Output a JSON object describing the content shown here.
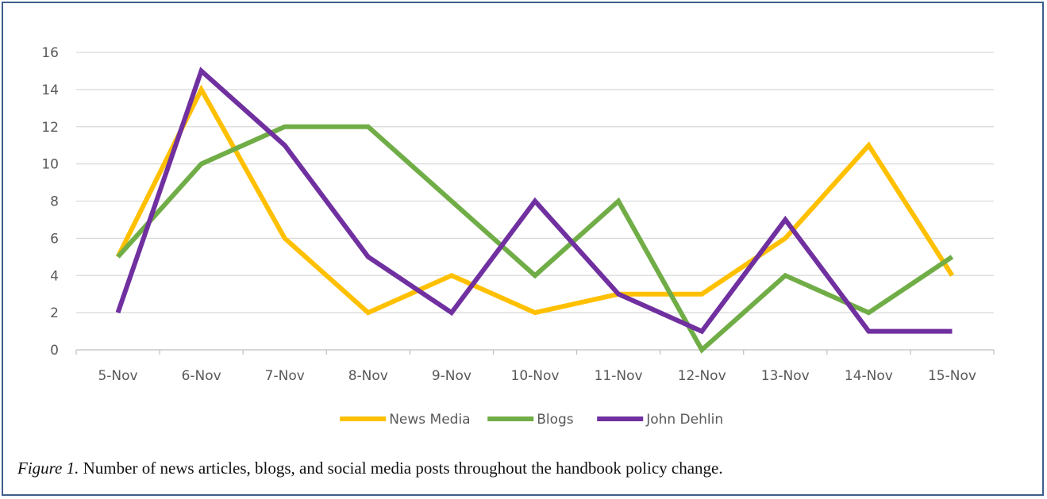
{
  "chart_data": {
    "type": "line",
    "categories": [
      "5-Nov",
      "6-Nov",
      "7-Nov",
      "8-Nov",
      "9-Nov",
      "10-Nov",
      "11-Nov",
      "12-Nov",
      "13-Nov",
      "14-Nov",
      "15-Nov"
    ],
    "series": [
      {
        "name": "News Media",
        "color": "#ffc000",
        "values": [
          5,
          14,
          6,
          2,
          4,
          2,
          3,
          3,
          6,
          11,
          4
        ]
      },
      {
        "name": "Blogs",
        "color": "#70ad47",
        "values": [
          5,
          10,
          12,
          12,
          8,
          4,
          8,
          0,
          4,
          2,
          5
        ]
      },
      {
        "name": "John Dehlin",
        "color": "#7030a0",
        "values": [
          2,
          15,
          11,
          5,
          2,
          8,
          3,
          1,
          7,
          1,
          1
        ]
      }
    ],
    "ylim": [
      0,
      16
    ],
    "yticks": [
      0,
      2,
      4,
      6,
      8,
      10,
      12,
      14,
      16
    ],
    "grid": true,
    "legend_position": "bottom",
    "title": "",
    "xlabel": "",
    "ylabel": ""
  },
  "caption": {
    "figure_label": "Figure 1.",
    "text": " Number of news articles, blogs, and social media posts throughout the handbook policy change."
  }
}
